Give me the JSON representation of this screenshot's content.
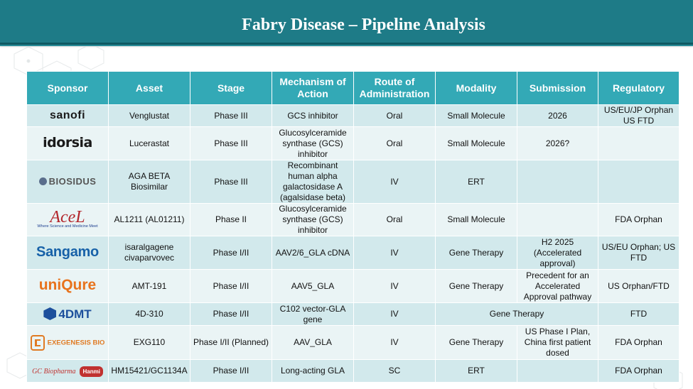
{
  "header": {
    "title": "Fabry Disease – Pipeline Analysis"
  },
  "colors": {
    "header_bar": "#1e7b87",
    "table_header": "#33a9b6",
    "row_odd": "#d2e9ec",
    "row_even": "#eaf4f5"
  },
  "table": {
    "columns": [
      "Sponsor",
      "Asset",
      "Stage",
      "Mechanism of Action",
      "Route of Administration",
      "Modality",
      "Submission",
      "Regulatory"
    ],
    "rows": [
      {
        "sponsor": "sanofi",
        "asset": "Venglustat",
        "stage": "Phase III",
        "moa": "GCS inhibitor",
        "route": "Oral",
        "modality": "Small Molecule",
        "submission": "2026",
        "regulatory": "US/EU/JP Orphan US FTD"
      },
      {
        "sponsor": "idorsia",
        "asset": "Lucerastat",
        "stage": "Phase III",
        "moa": "Glucosylceramide synthase (GCS) inhibitor",
        "route": "Oral",
        "modality": "Small Molecule",
        "submission": "2026?",
        "regulatory": ""
      },
      {
        "sponsor": "BIOSIDUS",
        "asset": "AGA BETA Biosimilar",
        "stage": "Phase III",
        "moa": "Recombinant human alpha galactosidase A (agalsidase beta)",
        "route": "IV",
        "modality": "ERT",
        "submission": "",
        "regulatory": ""
      },
      {
        "sponsor": "AceL",
        "sponsor_tagline": "Where Science and Medicine Meet",
        "asset": "AL1211 (AL01211)",
        "stage": "Phase II",
        "moa": "Glucosylceramide synthase (GCS) inhibitor",
        "route": "Oral",
        "modality": "Small Molecule",
        "submission": "",
        "regulatory": "FDA Orphan"
      },
      {
        "sponsor": "Sangamo",
        "asset": "isaralgagene civaparvovec",
        "stage": "Phase I/II",
        "moa": "AAV2/6_GLA cDNA",
        "route": "IV",
        "modality": "Gene Therapy",
        "submission": "H2 2025 (Accelerated approval)",
        "regulatory": "US/EU Orphan; US FTD"
      },
      {
        "sponsor": "uniQure",
        "asset": "AMT-191",
        "stage": "Phase I/II",
        "moa": "AAV5_GLA",
        "route": "IV",
        "modality": "Gene Therapy",
        "submission": "Precedent for an Accelerated Approval pathway",
        "regulatory": "US Orphan/FTD"
      },
      {
        "sponsor": "4DMT",
        "asset": "4D-310",
        "stage": "Phase I/II",
        "moa": "C102 vector-GLA gene",
        "route": "IV",
        "modality_submission_merged": "Gene Therapy",
        "regulatory": "FTD"
      },
      {
        "sponsor": "EXEGENESIS BIO",
        "asset": "EXG110",
        "stage": "Phase I/II (Planned)",
        "moa": "AAV_GLA",
        "route": "IV",
        "modality": "Gene Therapy",
        "submission": "US Phase I Plan, China first patient dosed",
        "regulatory": "FDA Orphan"
      },
      {
        "sponsor": "GC Biopharma",
        "sponsor_partner": "Hanmi",
        "asset": "HM15421/GC1134A",
        "stage": "Phase I/II",
        "moa": "Long-acting GLA",
        "route": "SC",
        "modality": "ERT",
        "submission": "",
        "regulatory": "FDA Orphan"
      }
    ]
  }
}
